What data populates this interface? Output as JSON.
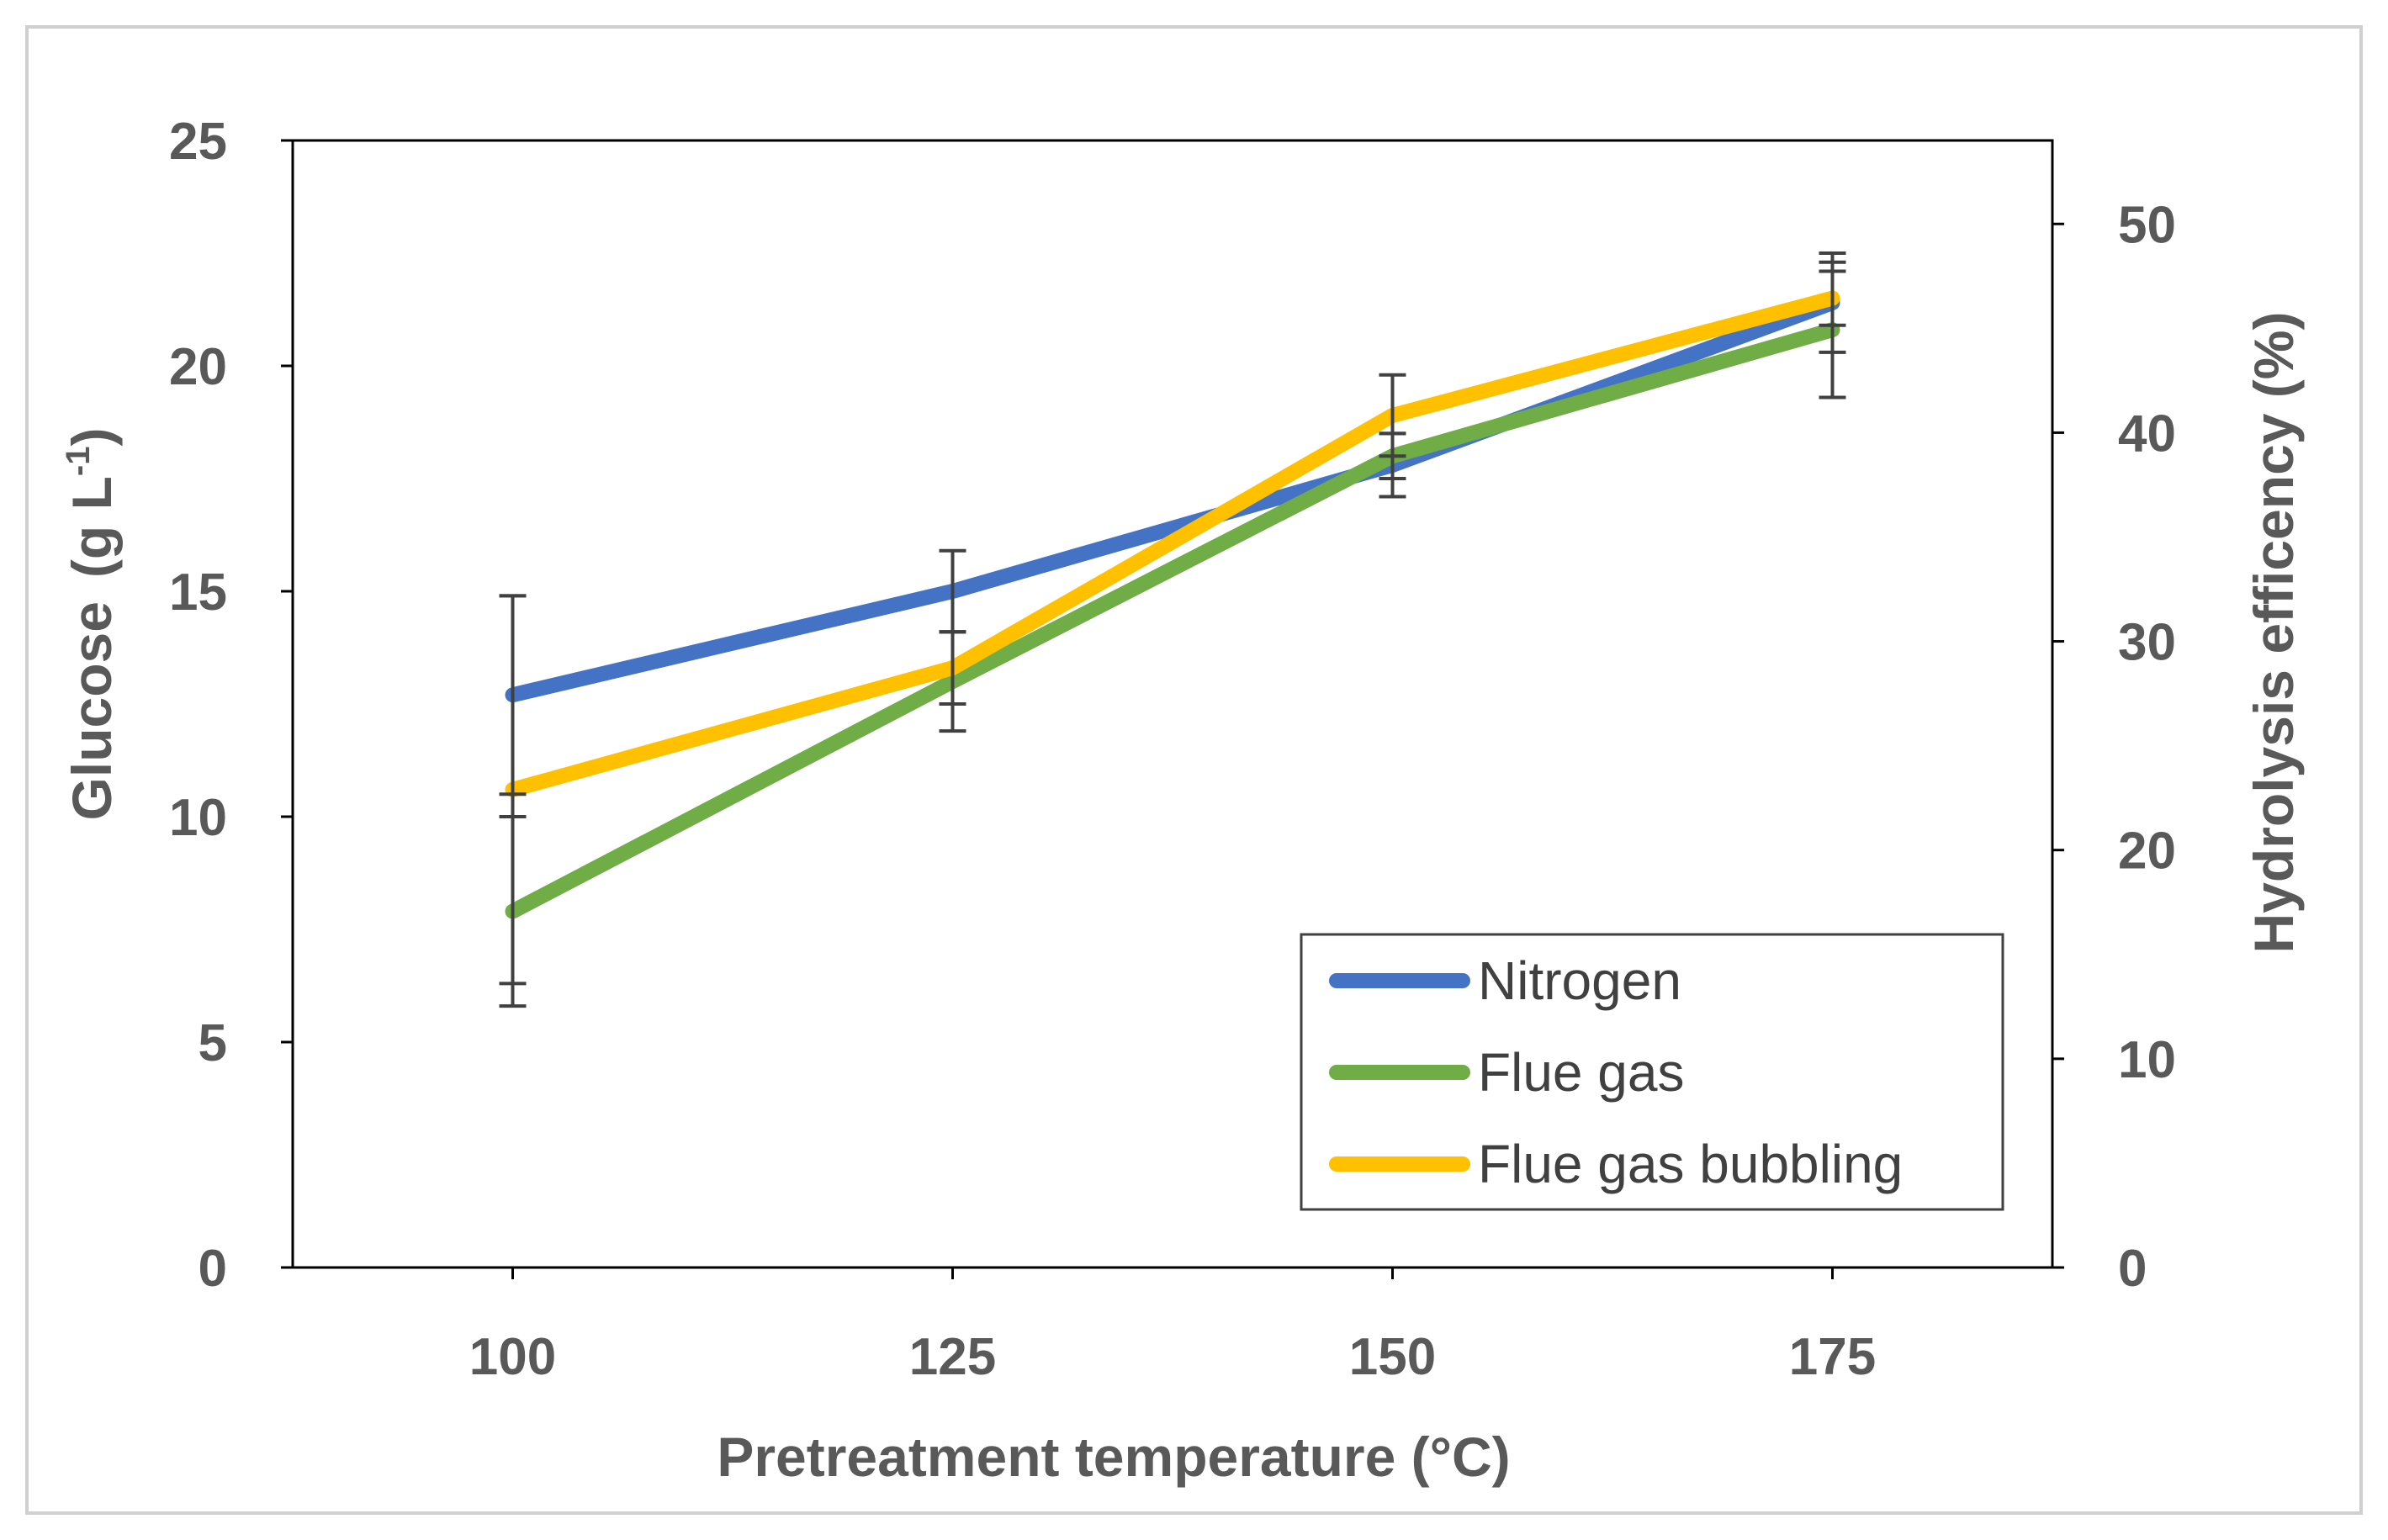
{
  "chart_data": {
    "type": "line",
    "title": "",
    "xlabel": "Pretreatment temperature (°C)",
    "ylabel_left": {
      "text": "Glucose",
      "unit_base": "(g L",
      "unit_sup": "-1",
      "unit_close": ")"
    },
    "ylabel_right": "Hydrolysis efficency (%)",
    "x": [
      100,
      125,
      150,
      175
    ],
    "x_tick_labels": [
      "100",
      "125",
      "150",
      "175"
    ],
    "xlim": [
      87.5,
      187.5
    ],
    "ylim_left": [
      0,
      25
    ],
    "y_left_ticks": [
      0,
      5,
      10,
      15,
      20,
      25
    ],
    "ylim_right": [
      0,
      54
    ],
    "y_right_ticks": [
      0,
      10,
      20,
      30,
      40,
      50
    ],
    "grid": false,
    "legend_position": "bottom-right",
    "series": [
      {
        "name": "Nitrogen",
        "color": "#4472C4",
        "values": [
          12.7,
          15.0,
          17.8,
          21.4
        ],
        "errors": [
          2.2,
          0.9,
          0.7,
          1.1
        ]
      },
      {
        "name": "Flue gas",
        "color": "#70AD47",
        "values": [
          7.9,
          13.0,
          18.0,
          20.8
        ],
        "errors": [
          2.1,
          1.1,
          0.5,
          1.5
        ]
      },
      {
        "name": "Flue gas bubbling",
        "color": "#FFC000",
        "values": [
          10.6,
          13.3,
          18.9,
          21.5
        ],
        "errors": [
          4.3,
          0.8,
          0.9,
          0.6
        ]
      }
    ]
  }
}
